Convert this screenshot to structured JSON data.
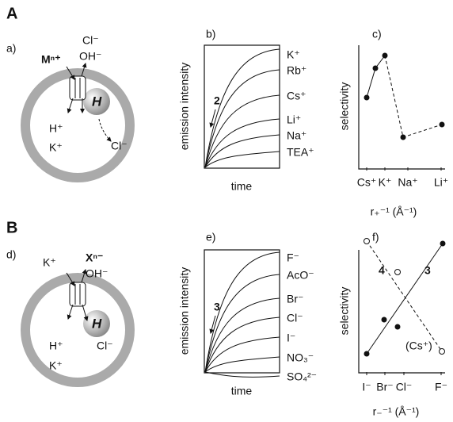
{
  "panel_A": {
    "label": "A",
    "a": {
      "label": "a)",
      "cation": "Mⁿ⁺",
      "anion_1": "Cl⁻",
      "anion_2": "OH⁻",
      "inside": [
        "H⁺",
        "K⁺"
      ],
      "released": "Cl⁻",
      "host": "H"
    },
    "b": {
      "label": "b)",
      "y_label": "emission intensity",
      "x_label": "time",
      "probe": "2",
      "curves": [
        "K⁺",
        "Rb⁺",
        "Cs⁺",
        "Li⁺",
        "Na⁺",
        "TEA⁺"
      ]
    },
    "c": {
      "label": "c)",
      "y_label": "selectivity",
      "x_label": "r₊⁻¹ (Å⁻¹)",
      "categories": [
        "Cs⁺",
        "K⁺",
        "Na⁺",
        "Li⁺"
      ]
    }
  },
  "panel_B": {
    "label": "B",
    "d": {
      "label": "d)",
      "cation": "K⁺",
      "anion_1": "Xⁿ⁻",
      "anion_2": "OH⁻",
      "inside": [
        "H⁺",
        "K⁺"
      ],
      "released": "Cl⁻",
      "host": "H"
    },
    "e": {
      "label": "e)",
      "y_label": "emission intensity",
      "x_label": "time",
      "probe": "3",
      "curves": [
        "F⁻",
        "AcO⁻",
        "Br⁻",
        "Cl⁻",
        "I⁻",
        "NO₃⁻",
        "SO₄²⁻"
      ]
    },
    "f": {
      "label": "f)",
      "y_label": "selectivity",
      "x_label": "r₋⁻¹ (Å⁻¹)",
      "series_labels": [
        "4",
        "3"
      ],
      "note": "(Cs⁺)",
      "categories": [
        "I⁻",
        "Br⁻",
        "Cl⁻",
        "F⁻"
      ]
    }
  }
}
